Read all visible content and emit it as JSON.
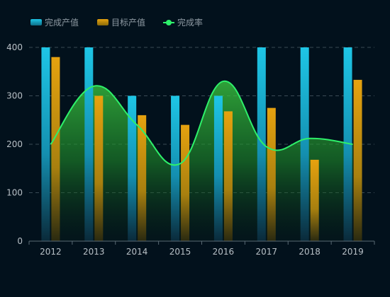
{
  "chart_data": {
    "type": "bar",
    "categories": [
      "2012",
      "2013",
      "2014",
      "2015",
      "2016",
      "2017",
      "2018",
      "2019"
    ],
    "series": [
      {
        "name": "完成产值",
        "type": "bar",
        "color": "#1ec6e6",
        "values": [
          400,
          400,
          300,
          300,
          300,
          400,
          400,
          400
        ]
      },
      {
        "name": "目标产值",
        "type": "bar",
        "color": "#e6a20f",
        "values": [
          380,
          300,
          260,
          240,
          268,
          275,
          168,
          333
        ]
      },
      {
        "name": "完成率",
        "type": "line",
        "smooth": true,
        "area": true,
        "color": "#2ef06a",
        "values": [
          200,
          320,
          240,
          160,
          330,
          195,
          212,
          200
        ]
      }
    ],
    "ylim": [
      0,
      400
    ],
    "yticks": [
      0,
      100,
      200,
      300,
      400
    ],
    "grid": true,
    "legend_position": "top-left",
    "title": "",
    "xlabel": "",
    "ylabel": ""
  }
}
